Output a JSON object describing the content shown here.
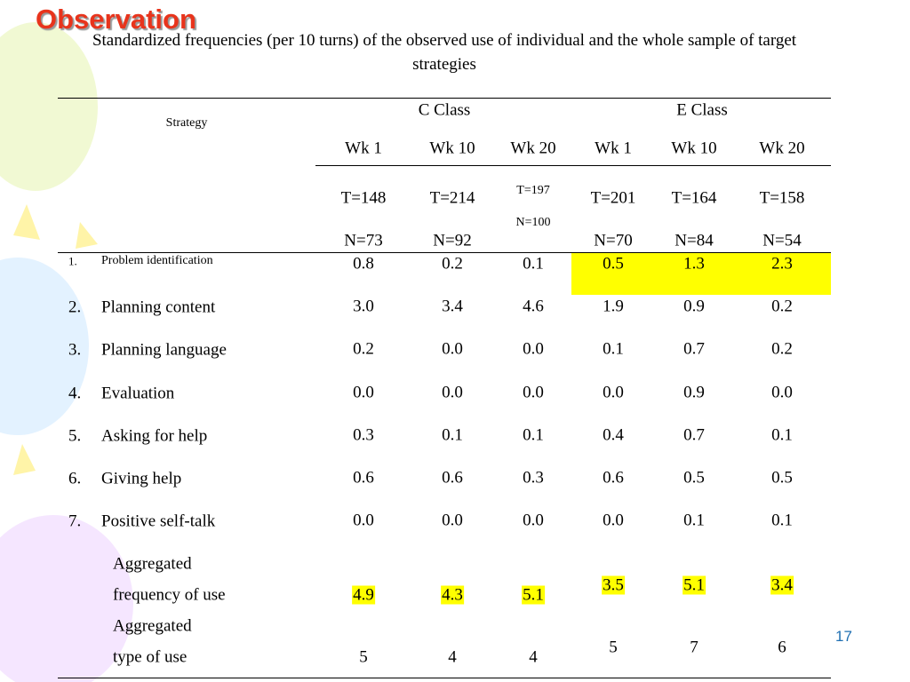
{
  "title": "Observation",
  "caption": "Standardized frequencies (per 10 turns) of the observed use of individual and the whole sample of target strategies",
  "table": {
    "strategy_header": "Strategy",
    "groups": [
      "C Class",
      "E Class"
    ],
    "weeks": [
      "Wk 1",
      "Wk 10",
      "Wk 20",
      "Wk 1",
      "Wk 10",
      "Wk 20"
    ],
    "totals": [
      "T=148",
      "T=214",
      "T=197",
      "T=201",
      "T=164",
      "T=158"
    ],
    "samples": [
      "N=73",
      "N=92",
      "N=100",
      "N=70",
      "N=84",
      "N=54"
    ],
    "rows": [
      {
        "number": "1.",
        "label": "Problem identification",
        "values": [
          "0.8",
          "0.2",
          "0.1",
          "0.5",
          "1.3",
          "2.3"
        ]
      },
      {
        "number": "2.",
        "label": "Planning content",
        "values": [
          "3.0",
          "3.4",
          "4.6",
          "1.9",
          "0.9",
          "0.2"
        ]
      },
      {
        "number": "3.",
        "label": "Planning language",
        "values": [
          "0.2",
          "0.0",
          "0.0",
          "0.1",
          "0.7",
          "0.2"
        ]
      },
      {
        "number": "4.",
        "label": "Evaluation",
        "values": [
          "0.0",
          "0.0",
          "0.0",
          "0.0",
          "0.9",
          "0.0"
        ]
      },
      {
        "number": "5.",
        "label": "Asking for help",
        "values": [
          "0.3",
          "0.1",
          "0.1",
          "0.4",
          "0.7",
          "0.1"
        ]
      },
      {
        "number": "6.",
        "label": "Giving help",
        "values": [
          "0.6",
          "0.6",
          "0.3",
          "0.6",
          "0.5",
          "0.5"
        ]
      },
      {
        "number": "7.",
        "label": "Positive self-talk",
        "values": [
          "0.0",
          "0.0",
          "0.0",
          "0.0",
          "0.1",
          "0.1"
        ]
      }
    ],
    "aggregates": [
      {
        "label_lines": [
          "Aggregated",
          "frequency of use"
        ],
        "values": [
          "4.9",
          "4.3",
          "5.1",
          "3.5",
          "5.1",
          "3.4"
        ]
      },
      {
        "label_lines": [
          "Aggregated",
          "type of use"
        ],
        "values": [
          "5",
          "4",
          "4",
          "5",
          "7",
          "6"
        ]
      }
    ]
  },
  "page_number": "17"
}
